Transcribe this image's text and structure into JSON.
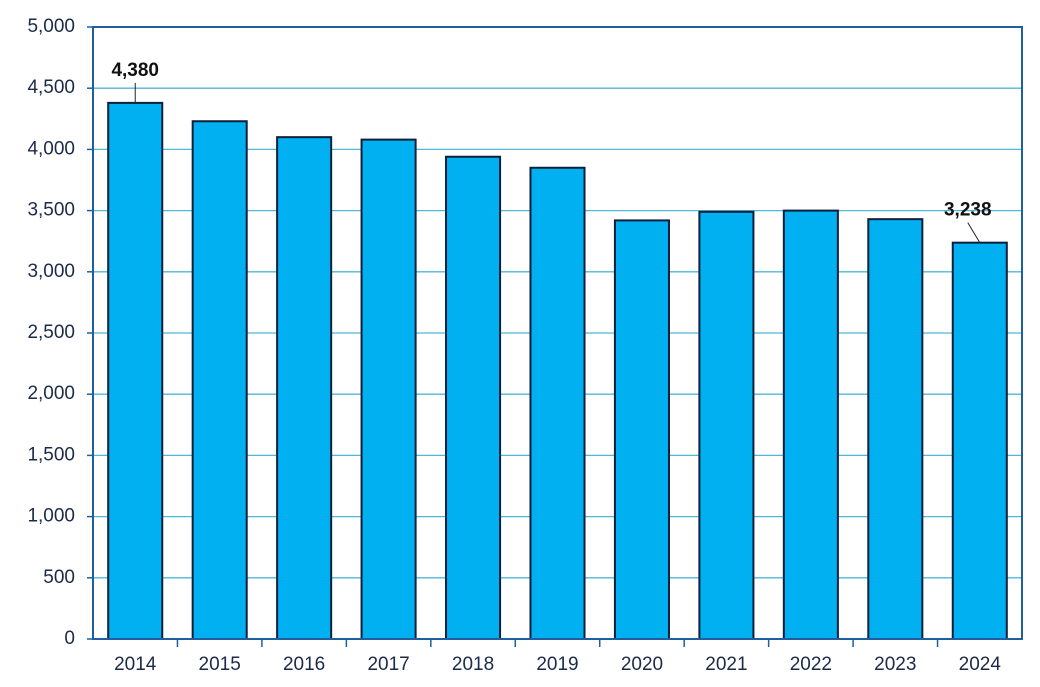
{
  "chart_data": {
    "type": "bar",
    "categories": [
      "2014",
      "2015",
      "2016",
      "2017",
      "2018",
      "2019",
      "2020",
      "2021",
      "2022",
      "2023",
      "2024"
    ],
    "values": [
      4380,
      4230,
      4100,
      4080,
      3940,
      3850,
      3420,
      3490,
      3500,
      3430,
      3238
    ],
    "value_labels": [
      "4,380",
      null,
      null,
      null,
      null,
      null,
      null,
      null,
      null,
      null,
      "3,238"
    ],
    "color": "#00b0f0",
    "ylim": [
      0,
      5000
    ],
    "yticks": [
      0,
      500,
      {
        "value": 1000,
        "label": "1,000"
      },
      {
        "value": 1500,
        "label": "1,500"
      },
      {
        "value": 2000,
        "label": "2,000"
      },
      {
        "value": 2500,
        "label": "2,500"
      },
      {
        "value": 3000,
        "label": "3,000"
      },
      {
        "value": 3500,
        "label": "3,500"
      },
      {
        "value": 4000,
        "label": "4,000"
      },
      {
        "value": 4500,
        "label": "4,500"
      },
      {
        "value": 5000,
        "label": "5,000"
      }
    ],
    "grid": true
  }
}
